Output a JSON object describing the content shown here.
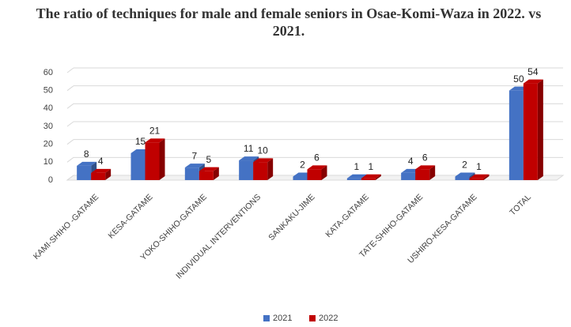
{
  "chart_data": {
    "type": "bar3d",
    "title": "The ratio of techniques for male and female seniors in Osae-Komi-Waza in 2022. vs 2021.",
    "categories": [
      "KAMI-SHIHO -GATAME",
      "KESA-GATAME",
      "YOKO-SHIHO-GATAME",
      "INDIVIDUAL INTERVENTIONS",
      "SANKAKU-JIME",
      "KATA-GATAME",
      "TATE-SHIHO-GATAME",
      "USHIRO-KESA-GATAME",
      "TOTAL"
    ],
    "series": [
      {
        "name": "2021",
        "color": "#4472c4",
        "values": [
          8,
          15,
          7,
          11,
          2,
          1,
          4,
          2,
          50
        ]
      },
      {
        "name": "2022",
        "color": "#c00000",
        "values": [
          4,
          21,
          5,
          10,
          6,
          1,
          6,
          1,
          54
        ]
      }
    ],
    "ylim": [
      0,
      60
    ],
    "yticks": [
      0,
      10,
      20,
      30,
      40,
      50,
      60
    ],
    "grid": true,
    "legend": "bottom"
  }
}
